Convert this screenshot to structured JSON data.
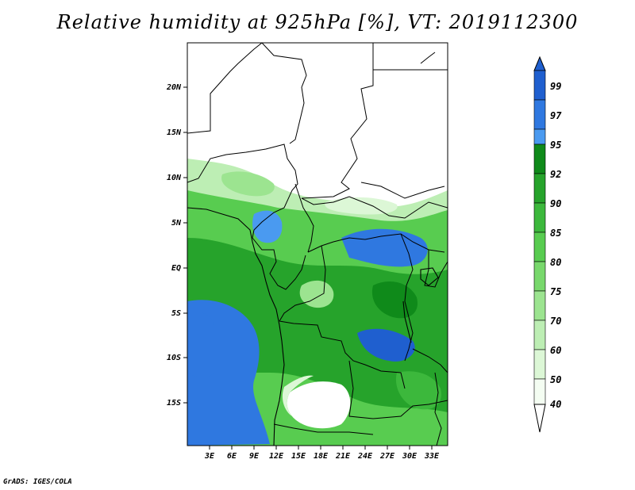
{
  "title": "Relative humidity at 925hPa [%], VT: 2019112300",
  "credit": "GrADS: IGES/COLA",
  "lat_labels": [
    "20N",
    "15N",
    "10N",
    "5N",
    "EQ",
    "5S",
    "10S",
    "15S"
  ],
  "lon_labels": [
    "3E",
    "6E",
    "9E",
    "12E",
    "15E",
    "18E",
    "21E",
    "24E",
    "27E",
    "30E",
    "33E"
  ],
  "colorbar": {
    "labels": [
      "99",
      "97",
      "95",
      "92",
      "90",
      "85",
      "80",
      "75",
      "70",
      "60",
      "50",
      "40"
    ],
    "colors": [
      "#1f5fcf",
      "#2f78e0",
      "#4a9af0",
      "#0f8a1a",
      "#26a32b",
      "#3cb83c",
      "#58cc50",
      "#78d86c",
      "#9ce490",
      "#bdeeb4",
      "#dcf7d6",
      "#f4fdf2"
    ]
  },
  "map_colors": {
    "white": "#ffffff",
    "lightest_green": "#dcf7d6",
    "light_green": "#9ce490",
    "mid_green": "#3cb83c",
    "dark_green": "#0f8a1a",
    "blue": "#2f78e0",
    "dark_blue": "#1f5fcf"
  }
}
